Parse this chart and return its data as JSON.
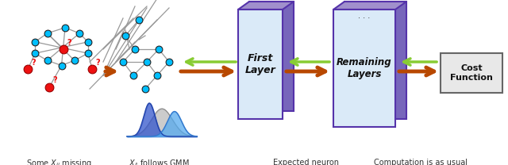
{
  "fig_width": 6.4,
  "fig_height": 2.08,
  "dpi": 100,
  "bg_color": "#ffffff",
  "cyan_node_color": "#00BFFF",
  "red_node_color": "#EE1111",
  "node_edge_color": "#222222",
  "edge_color": "#999999",
  "orange_arrow_color": "#B84800",
  "green_arrow_color": "#88CC33",
  "layer_face_color": "#DAEAF8",
  "layer_edge_color": "#5533AA",
  "layer_side_color": "#7766BB",
  "layer_top_color": "#A090CC",
  "cost_box_color": "#E8E8E8",
  "cost_box_edge": "#666666",
  "label1": "Some $X_{ij}$ missing",
  "label2": "$X_{ij}$ follows GMM",
  "label3": "Expected neuron\nactivation",
  "label4": "Computation is as usual",
  "layer1_text": "First\nLayer",
  "layer2_text": "Remaining\nLayers",
  "cost_text": "Cost\nFunction",
  "dots_text": "· · ·"
}
